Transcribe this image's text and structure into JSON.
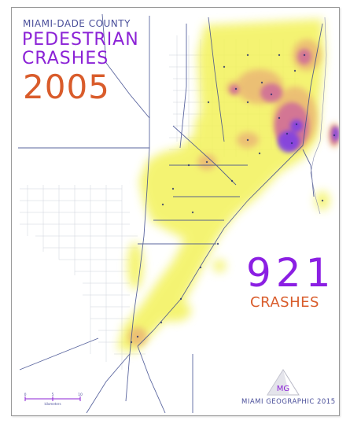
{
  "title": {
    "county": "MIAMI-DADE COUNTY",
    "line1": "PEDESTRIAN",
    "line2": "CRASHES",
    "year": "2005"
  },
  "summary": {
    "count": "921",
    "label": "CRASHES"
  },
  "scalebar": {
    "ticks": [
      "0",
      "5",
      "10"
    ],
    "unit": "kilometers"
  },
  "logo": {
    "text": "MG"
  },
  "credit": "MIAMI GEOGRAPHIC 2015",
  "colors": {
    "heat_low": "#f3f25a",
    "heat_mid": "#e8a27a",
    "heat_high": "#cf6a9a",
    "heat_peak": "#7a3ce8",
    "roads": "#3e4b8e",
    "title_purple": "#8b22d6",
    "title_orange": "#d95c2b",
    "text_navy": "#4a4f9a"
  }
}
